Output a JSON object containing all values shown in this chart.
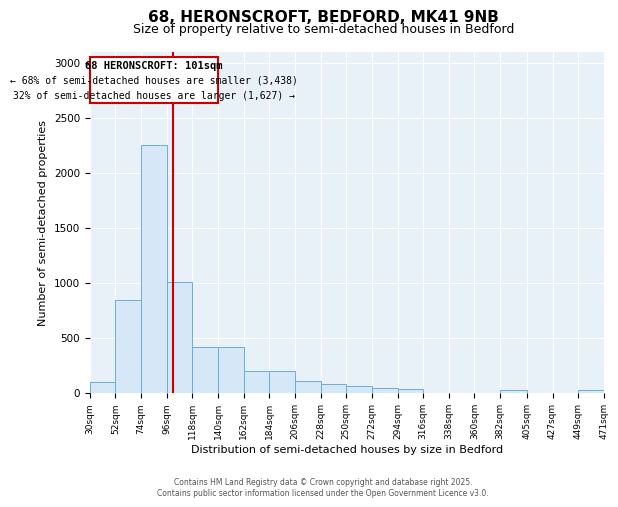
{
  "title1": "68, HERONSCROFT, BEDFORD, MK41 9NB",
  "title2": "Size of property relative to semi-detached houses in Bedford",
  "xlabel": "Distribution of semi-detached houses by size in Bedford",
  "ylabel": "Number of semi-detached properties",
  "bin_edges": [
    30,
    52,
    74,
    96,
    118,
    140,
    162,
    184,
    206,
    228,
    250,
    272,
    294,
    316,
    338,
    360,
    382,
    405,
    427,
    449,
    471
  ],
  "bar_heights": [
    100,
    840,
    2250,
    1010,
    420,
    420,
    200,
    200,
    110,
    80,
    65,
    45,
    35,
    0,
    0,
    0,
    30,
    0,
    0,
    30
  ],
  "bar_color": "#d6e8f7",
  "bar_edgecolor": "#6aaed6",
  "vline_x": 101,
  "vline_color": "#cc0000",
  "annotation_title": "68 HERONSCROFT: 101sqm",
  "annotation_line2": "← 68% of semi-detached houses are smaller (3,438)",
  "annotation_line3": "32% of semi-detached houses are larger (1,627) →",
  "annotation_box_color": "#cc0000",
  "ylim": [
    0,
    3100
  ],
  "yticks": [
    0,
    500,
    1000,
    1500,
    2000,
    2500,
    3000
  ],
  "bg_color": "#e8f0f8",
  "footer_line1": "Contains HM Land Registry data © Crown copyright and database right 2025.",
  "footer_line2": "Contains public sector information licensed under the Open Government Licence v3.0.",
  "title1_fontsize": 11,
  "title2_fontsize": 9
}
